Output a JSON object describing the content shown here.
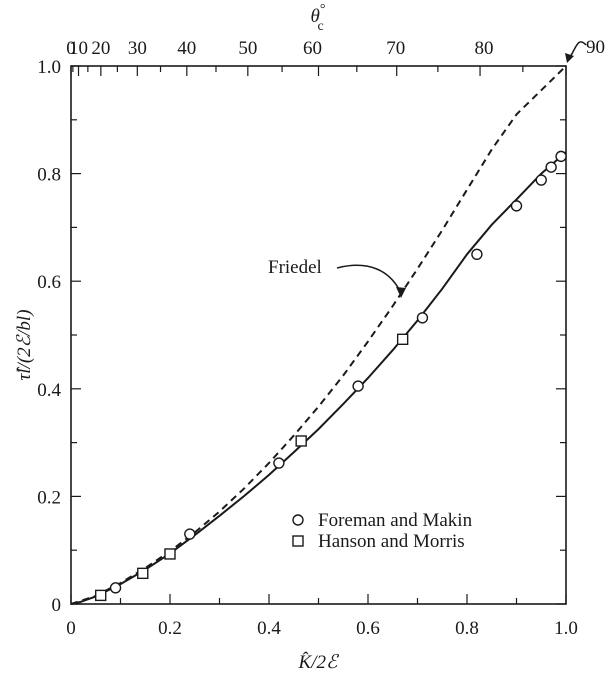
{
  "chart_data": {
    "type": "line",
    "xlabel": "K̂/2ℰ",
    "ylabel": "τ̂l/(2ℰ/bl)",
    "top_axis_label_main": "θ",
    "top_axis_label_sub": "c",
    "top_axis_label_sup": "°",
    "xlim": [
      0,
      1
    ],
    "ylim": [
      0,
      1
    ],
    "x_ticks": [
      {
        "value": 0,
        "label": "0"
      },
      {
        "value": 0.2,
        "label": "0.2"
      },
      {
        "value": 0.4,
        "label": "0.4"
      },
      {
        "value": 0.6,
        "label": "0.6"
      },
      {
        "value": 0.8,
        "label": "0.8"
      },
      {
        "value": 1.0,
        "label": "1.0"
      }
    ],
    "y_ticks": [
      {
        "value": 0,
        "label": "0"
      },
      {
        "value": 0.2,
        "label": "0.2"
      },
      {
        "value": 0.4,
        "label": "0.4"
      },
      {
        "value": 0.6,
        "label": "0.6"
      },
      {
        "value": 0.8,
        "label": "0.8"
      },
      {
        "value": 1.0,
        "label": "1.0"
      }
    ],
    "top_ticks": [
      {
        "value": 0,
        "label": "0"
      },
      {
        "value": 10,
        "label": "10"
      },
      {
        "value": 20,
        "label": "20"
      },
      {
        "value": 30,
        "label": "30"
      },
      {
        "value": 40,
        "label": "40"
      },
      {
        "value": 50,
        "label": "50"
      },
      {
        "value": 60,
        "label": "60"
      },
      {
        "value": 70,
        "label": "70"
      },
      {
        "value": 80,
        "label": "80"
      },
      {
        "value": 90,
        "label": "90"
      }
    ],
    "series": [
      {
        "style": "solid",
        "x": [
          0,
          0.02,
          0.05,
          0.1,
          0.15,
          0.2,
          0.25,
          0.3,
          0.35,
          0.4,
          0.45,
          0.5,
          0.55,
          0.6,
          0.65,
          0.7,
          0.75,
          0.8,
          0.85,
          0.9,
          0.95,
          1.0
        ],
        "y": [
          0,
          0.004,
          0.014,
          0.037,
          0.064,
          0.094,
          0.128,
          0.164,
          0.201,
          0.24,
          0.282,
          0.325,
          0.372,
          0.42,
          0.472,
          0.527,
          0.586,
          0.65,
          0.705,
          0.752,
          0.8,
          0.84
        ]
      },
      {
        "name": "Friedel",
        "style": "dashed",
        "x": [
          0,
          0.05,
          0.1,
          0.15,
          0.2,
          0.25,
          0.3,
          0.35,
          0.4,
          0.45,
          0.5,
          0.55,
          0.6,
          0.65,
          0.7,
          0.75,
          0.8,
          0.85,
          0.9,
          0.95,
          1.0
        ],
        "y": [
          0,
          0.015,
          0.039,
          0.067,
          0.098,
          0.133,
          0.172,
          0.215,
          0.262,
          0.313,
          0.367,
          0.425,
          0.488,
          0.554,
          0.623,
          0.695,
          0.77,
          0.845,
          0.91,
          0.955,
          1.0
        ]
      },
      {
        "name": "Foreman and Makin",
        "style": "circle",
        "x": [
          0.09,
          0.24,
          0.42,
          0.58,
          0.71,
          0.82,
          0.9,
          0.95,
          0.97,
          0.99
        ],
        "y": [
          0.03,
          0.13,
          0.262,
          0.405,
          0.532,
          0.65,
          0.74,
          0.788,
          0.812,
          0.832
        ]
      },
      {
        "name": "Hanson and Morris",
        "style": "square",
        "x": [
          0.06,
          0.145,
          0.2,
          0.465,
          0.67
        ],
        "y": [
          0.016,
          0.057,
          0.093,
          0.303,
          0.492
        ]
      }
    ],
    "annotations": [
      {
        "text": "Friedel"
      }
    ],
    "legend": [
      {
        "marker": "circle",
        "label": "Foreman and Makin"
      },
      {
        "marker": "square",
        "label": "Hanson and Morris"
      }
    ],
    "legend_position": "bottom-right"
  }
}
